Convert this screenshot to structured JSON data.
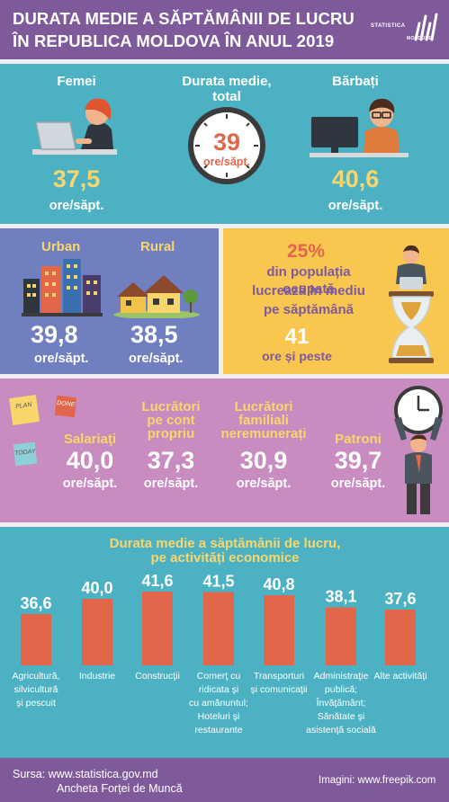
{
  "header": {
    "title_line1": "DURATA MEDIE A SĂPTĂMÂNII DE LUCRU",
    "title_line2": "ÎN REPUBLICA MOLDOVA ÎN ANUL 2019",
    "logo_line1": "STATISTICA",
    "logo_line2": "MOLDOVEI"
  },
  "gender": {
    "women_label": "Femei",
    "women_value": "37,5",
    "women_unit": "ore/săpt.",
    "total_label_1": "Durata medie,",
    "total_label_2": "total",
    "total_value": "39",
    "total_unit": "ore/săpt.",
    "men_label": "Bărbați",
    "men_value": "40,6",
    "men_unit": "ore/săpt."
  },
  "area": {
    "urban_label": "Urban",
    "urban_value": "39,8",
    "urban_unit": "ore/săpt.",
    "rural_label": "Rural",
    "rural_value": "38,5",
    "rural_unit": "ore/săpt."
  },
  "long_hours": {
    "percent": "25%",
    "text_1": "din populația ocupată",
    "text_2": "lucrează în mediu",
    "text_3": "pe săptămână",
    "value": "41",
    "unit": "ore și peste"
  },
  "status": {
    "sticky_plan": "PLAN",
    "sticky_done": "DONE",
    "sticky_today": "TODAY",
    "employees_label": "Salariaţi",
    "employees_value": "40,0",
    "employees_unit": "ore/săpt.",
    "self_label_1": "Lucrători",
    "self_label_2": "pe cont",
    "self_label_3": "propriu",
    "self_value": "37,3",
    "self_unit": "ore/săpt.",
    "family_label_1": "Lucrători",
    "family_label_2": "familiali",
    "family_label_3": "neremunerați",
    "family_value": "30,9",
    "family_unit": "ore/săpt.",
    "owners_label": "Patroni",
    "owners_value": "39,7",
    "owners_unit": "ore/săpt."
  },
  "chart_data": {
    "type": "bar",
    "title_line1": "Durata medie a săptămânii de lucru,",
    "title_line2": "pe activități economice",
    "categories": [
      [
        "Agricultură,",
        "silvicultură",
        "şi pescuit"
      ],
      [
        "Industrie"
      ],
      [
        "Construcţii"
      ],
      [
        "Comerţ cu",
        "ridicata şi",
        "cu amănuntul;",
        "Hoteluri şi",
        "restaurante"
      ],
      [
        "Transporturi",
        "şi comunicaţii"
      ],
      [
        "Administraţie",
        "publică;",
        "Învăţământ;",
        "Sănătate şi",
        "asistenţă socială"
      ],
      [
        "Alte activităţi"
      ]
    ],
    "values": [
      36.6,
      40.0,
      41.6,
      41.5,
      40.8,
      38.1,
      37.6
    ],
    "value_labels": [
      "36,6",
      "40,0",
      "41,6",
      "41,5",
      "40,8",
      "38,1",
      "37,6"
    ],
    "bar_color": "#e2664a"
  },
  "footer": {
    "source_1": "Sursa:  www.statistica.gov.md",
    "source_2": "Ancheta Forței de Muncă",
    "images": "Imagini: www.freepik.com"
  },
  "colors": {
    "purple": "#7e5a9b",
    "teal": "#4db1c4",
    "periwinkle": "#6f7fc0",
    "yellow": "#f9c74f",
    "pink": "#c88cc0",
    "accent_yellow": "#f9d66b",
    "accent_red": "#e2664a"
  }
}
